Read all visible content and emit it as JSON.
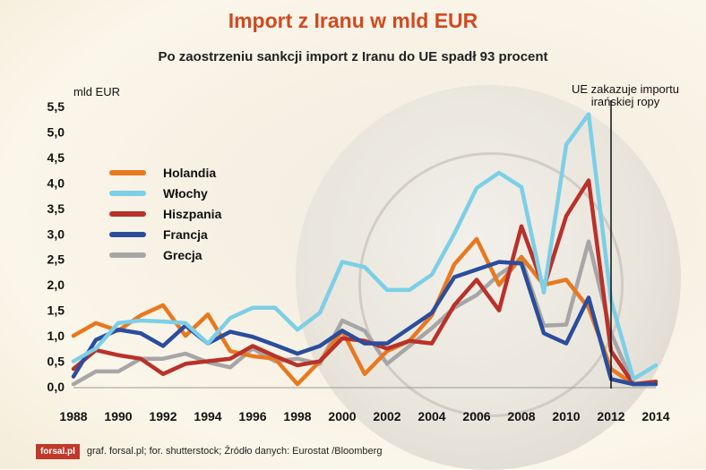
{
  "header": {
    "title": "Import z Iranu w mld EUR",
    "subtitle": "Po zaostrzeniu sankcji import z Iranu do UE spadł 93 procent"
  },
  "footer": {
    "logo": "forsal.pl",
    "credits": "graf. forsal.pl; for. shutterstock;  Źródło danych:  Eurostat /Bloomberg"
  },
  "chart_data": {
    "type": "line",
    "title": "Import z Iranu w mld EUR",
    "subtitle": "Po zaostrzeniu sankcji import z Iranu do UE spadł 93 procent",
    "ylabel": "mld EUR",
    "xlabel": "",
    "x": [
      1988,
      1989,
      1990,
      1991,
      1992,
      1993,
      1994,
      1995,
      1996,
      1997,
      1998,
      1999,
      2000,
      2001,
      2002,
      2003,
      2004,
      2005,
      2006,
      2007,
      2008,
      2009,
      2010,
      2011,
      2012,
      2013,
      2014
    ],
    "x_ticks": [
      "1988",
      "1990",
      "1992",
      "1994",
      "1996",
      "1998",
      "2000",
      "2002",
      "2004",
      "2006",
      "2008",
      "2010",
      "2012",
      "2014"
    ],
    "y_ticks": [
      "0,0",
      "0,5",
      "1,0",
      "1,5",
      "2,0",
      "2,5",
      "3,0",
      "3,5",
      "4,0",
      "4,5",
      "5,0",
      "5,5"
    ],
    "ylim": [
      0,
      5.5
    ],
    "xlim": [
      1988,
      2014
    ],
    "grid": false,
    "legend_position": "left",
    "annotation": {
      "x": 2012,
      "lines": [
        "UE zakazuje importu",
        "irańskiej ropy"
      ]
    },
    "series": [
      {
        "name": "Holandia",
        "color": "#e8781f",
        "values": [
          1.0,
          1.25,
          1.1,
          1.4,
          1.6,
          1.0,
          1.42,
          0.7,
          0.6,
          0.55,
          0.05,
          0.5,
          1.1,
          0.25,
          0.7,
          0.9,
          1.4,
          2.4,
          2.9,
          2.0,
          2.55,
          2.0,
          2.1,
          1.55,
          0.35,
          0.05,
          0.1
        ]
      },
      {
        "name": "Włochy",
        "color": "#7ccfe6",
        "values": [
          0.5,
          0.75,
          1.25,
          1.3,
          1.28,
          1.25,
          0.85,
          1.35,
          1.55,
          1.55,
          1.12,
          1.45,
          2.45,
          2.35,
          1.9,
          1.9,
          2.2,
          3.0,
          3.9,
          4.2,
          3.92,
          1.85,
          4.75,
          5.35,
          1.7,
          0.15,
          0.42
        ]
      },
      {
        "name": "Hiszpania",
        "color": "#b9312a",
        "values": [
          0.35,
          0.72,
          0.62,
          0.55,
          0.25,
          0.45,
          0.5,
          0.55,
          0.8,
          0.6,
          0.42,
          0.5,
          0.95,
          0.9,
          0.75,
          0.9,
          0.85,
          1.6,
          2.1,
          1.5,
          3.15,
          1.95,
          3.35,
          4.05,
          0.7,
          0.05,
          0.1
        ]
      },
      {
        "name": "Francja",
        "color": "#2a4d9c",
        "values": [
          0.2,
          0.92,
          1.12,
          1.05,
          0.8,
          1.2,
          0.85,
          1.08,
          0.98,
          0.82,
          0.65,
          0.8,
          1.1,
          0.85,
          0.85,
          1.15,
          1.45,
          2.15,
          2.3,
          2.45,
          2.42,
          1.05,
          0.85,
          1.75,
          0.15,
          0.05,
          0.05
        ]
      },
      {
        "name": "Grecja",
        "color": "#a6a6a6",
        "values": [
          0.05,
          0.3,
          0.3,
          0.55,
          0.55,
          0.65,
          0.48,
          0.38,
          0.75,
          0.5,
          0.55,
          0.45,
          1.3,
          1.1,
          0.45,
          0.8,
          1.15,
          1.55,
          1.8,
          2.2,
          2.5,
          1.2,
          1.22,
          2.85,
          1.05,
          0.05,
          0.05
        ]
      }
    ]
  }
}
